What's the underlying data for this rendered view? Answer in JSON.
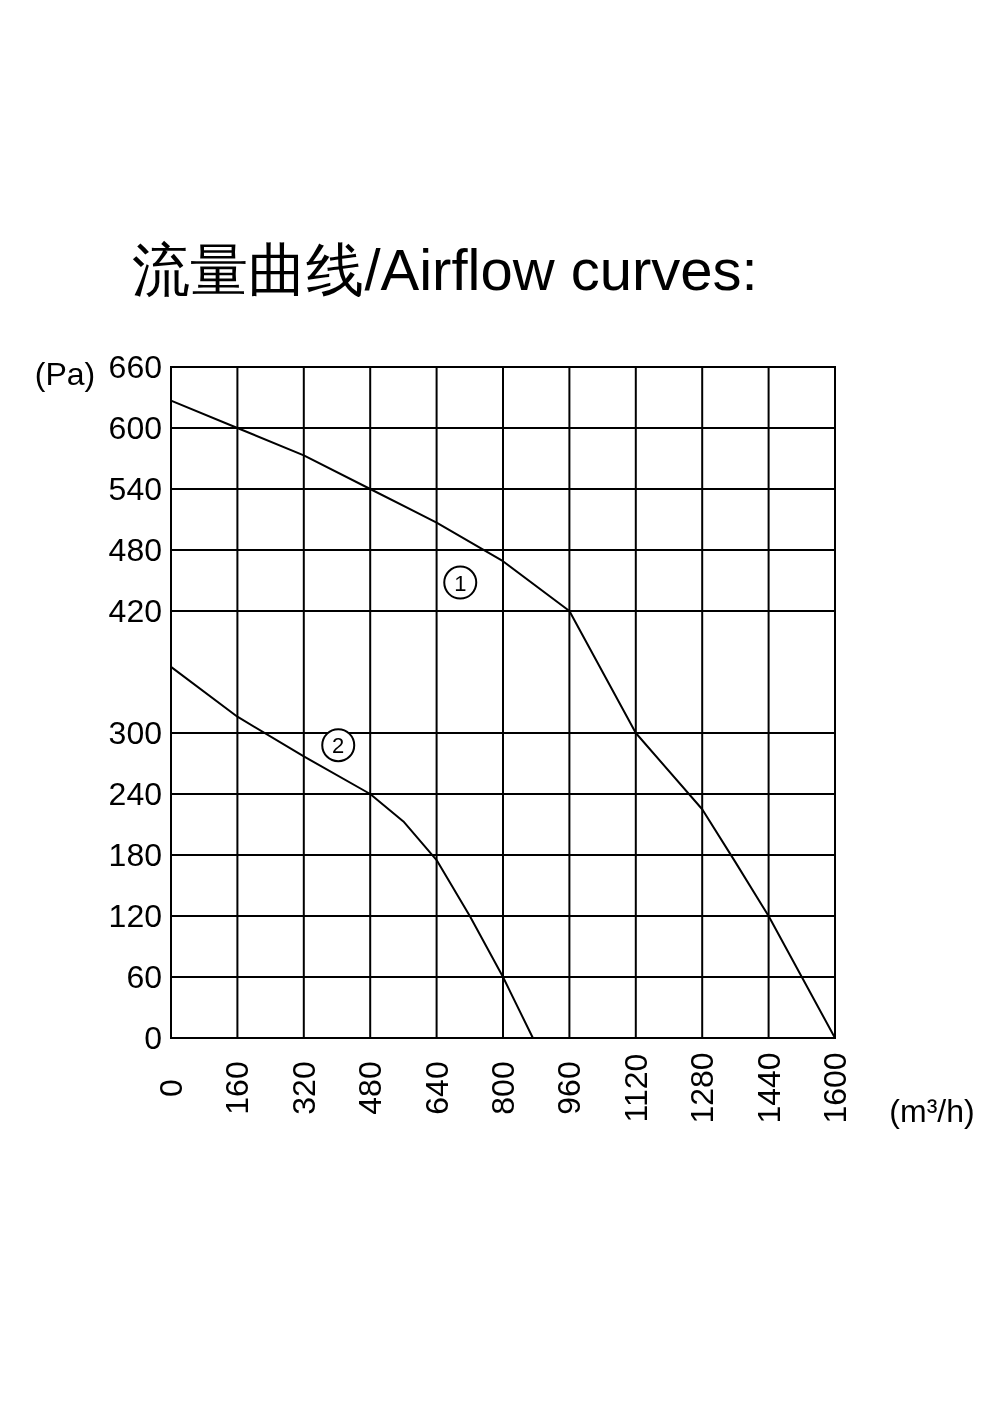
{
  "chart_data": {
    "type": "line",
    "title": "流量曲线/Airflow curves:",
    "xlabel": "(m³/h)",
    "ylabel": "(Pa)",
    "xlim": [
      0,
      1600
    ],
    "xticks": [
      0,
      160,
      320,
      480,
      640,
      800,
      960,
      1120,
      1280,
      1440,
      1600
    ],
    "ylim": [
      0,
      660
    ],
    "yticks": [
      0,
      60,
      120,
      180,
      240,
      300,
      420,
      480,
      540,
      600,
      660
    ],
    "grid": true,
    "series": [
      {
        "color": "#000000",
        "x": [
          0,
          160,
          320,
          480,
          640,
          800,
          960,
          1120,
          1280,
          1360,
          1440,
          1520,
          1600
        ],
        "values": [
          627,
          600,
          573,
          540,
          507,
          469,
          420,
          300,
          225,
          173,
          120,
          60,
          0
        ]
      },
      {
        "color": "#000000",
        "x": [
          0,
          160,
          320,
          480,
          560,
          640,
          720,
          800,
          872
        ],
        "values": [
          365,
          316,
          277,
          240,
          213,
          175,
          120,
          60,
          0
        ]
      }
    ],
    "annotations": [
      {
        "text": "1",
        "x": 697,
        "y": 448
      },
      {
        "text": "2",
        "x": 403,
        "y": 288
      }
    ]
  }
}
